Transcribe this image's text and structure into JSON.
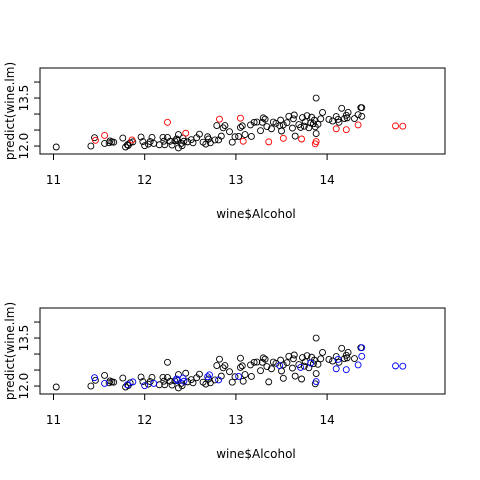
{
  "chart_data": [
    {
      "type": "scatter",
      "xlabel": "wine$Alcohol",
      "ylabel": "predict(wine.lm)",
      "xlim": [
        11,
        14.8
      ],
      "ylim": [
        11.88,
        14.12
      ],
      "x_ticks": [
        "11",
        "12",
        "13",
        "14"
      ],
      "y_ticks": [
        "12.0",
        "12.5",
        "13.0",
        "13.5",
        "14.0"
      ],
      "y_tick_labels_shown": [
        "12.0",
        "13.5"
      ],
      "marker": "open-circle",
      "series": [
        {
          "color": "#000000",
          "points": [
            [
              11.03,
              11.97
            ],
            [
              11.41,
              12.0
            ],
            [
              11.45,
              12.26
            ],
            [
              11.56,
              12.08
            ],
            [
              11.61,
              12.1
            ],
            [
              11.62,
              12.16
            ],
            [
              11.64,
              12.13
            ],
            [
              11.66,
              12.12
            ],
            [
              11.76,
              12.25
            ],
            [
              11.79,
              11.97
            ],
            [
              11.81,
              12.04
            ],
            [
              11.82,
              12.02
            ],
            [
              11.84,
              12.1
            ],
            [
              11.87,
              12.13
            ],
            [
              11.96,
              12.28
            ],
            [
              11.98,
              12.14
            ],
            [
              12.0,
              12.01
            ],
            [
              12.04,
              12.06
            ],
            [
              12.06,
              12.14
            ],
            [
              12.08,
              12.27
            ],
            [
              12.1,
              12.08
            ],
            [
              12.16,
              12.04
            ],
            [
              12.2,
              12.27
            ],
            [
              12.21,
              12.15
            ],
            [
              12.22,
              12.04
            ],
            [
              12.25,
              12.27
            ],
            [
              12.28,
              12.15
            ],
            [
              12.3,
              12.03
            ],
            [
              12.33,
              12.16
            ],
            [
              12.35,
              12.22
            ],
            [
              12.36,
              12.17
            ],
            [
              12.37,
              12.36
            ],
            [
              12.37,
              11.94
            ],
            [
              12.4,
              12.08
            ],
            [
              12.41,
              12.01
            ],
            [
              12.42,
              12.25
            ],
            [
              12.43,
              12.15
            ],
            [
              12.47,
              12.13
            ],
            [
              12.51,
              12.2
            ],
            [
              12.53,
              12.1
            ],
            [
              12.57,
              12.26
            ],
            [
              12.6,
              12.37
            ],
            [
              12.64,
              12.12
            ],
            [
              12.67,
              12.06
            ],
            [
              12.69,
              12.29
            ],
            [
              12.7,
              12.22
            ],
            [
              12.72,
              12.1
            ],
            [
              12.77,
              12.19
            ],
            [
              12.79,
              12.64
            ],
            [
              12.81,
              12.19
            ],
            [
              12.84,
              12.31
            ],
            [
              12.86,
              12.57
            ],
            [
              12.88,
              12.64
            ],
            [
              12.93,
              12.45
            ],
            [
              12.96,
              12.12
            ],
            [
              12.99,
              12.29
            ],
            [
              13.03,
              12.3
            ],
            [
              13.05,
              12.58
            ],
            [
              13.07,
              12.63
            ],
            [
              13.1,
              12.36
            ],
            [
              13.16,
              12.66
            ],
            [
              13.17,
              12.3
            ],
            [
              13.2,
              12.74
            ],
            [
              13.23,
              12.75
            ],
            [
              13.27,
              12.48
            ],
            [
              13.29,
              12.74
            ],
            [
              13.3,
              12.88
            ],
            [
              13.32,
              12.84
            ],
            [
              13.34,
              12.61
            ],
            [
              13.39,
              12.54
            ],
            [
              13.41,
              12.75
            ],
            [
              13.44,
              12.71
            ],
            [
              13.48,
              12.64
            ],
            [
              13.49,
              12.81
            ],
            [
              13.5,
              12.47
            ],
            [
              13.52,
              12.66
            ],
            [
              13.56,
              12.73
            ],
            [
              13.58,
              12.93
            ],
            [
              13.62,
              12.56
            ],
            [
              13.63,
              12.85
            ],
            [
              13.64,
              12.97
            ],
            [
              13.65,
              12.31
            ],
            [
              13.69,
              12.67
            ],
            [
              13.71,
              12.58
            ],
            [
              13.73,
              12.89
            ],
            [
              13.75,
              12.62
            ],
            [
              13.76,
              12.76
            ],
            [
              13.78,
              12.95
            ],
            [
              13.8,
              12.57
            ],
            [
              13.82,
              12.72
            ],
            [
              13.83,
              12.9
            ],
            [
              13.85,
              12.7
            ],
            [
              13.86,
              12.81
            ],
            [
              13.87,
              12.6
            ],
            [
              13.88,
              12.39
            ],
            [
              13.88,
              13.5
            ],
            [
              13.9,
              12.68
            ],
            [
              13.93,
              12.85
            ],
            [
              13.95,
              13.05
            ],
            [
              14.02,
              12.83
            ],
            [
              14.06,
              12.78
            ],
            [
              14.1,
              12.92
            ],
            [
              14.12,
              12.83
            ],
            [
              14.13,
              12.74
            ],
            [
              14.16,
              13.18
            ],
            [
              14.19,
              12.86
            ],
            [
              14.21,
              12.96
            ],
            [
              14.22,
              12.88
            ],
            [
              14.23,
              13.05
            ],
            [
              14.3,
              12.86
            ],
            [
              14.34,
              12.98
            ],
            [
              14.37,
              13.2
            ],
            [
              14.38,
              13.2
            ],
            [
              14.38,
              12.93
            ]
          ]
        },
        {
          "color": "#ff0000",
          "points": [
            [
              11.46,
              12.18
            ],
            [
              11.56,
              12.33
            ],
            [
              11.86,
              12.19
            ],
            [
              12.25,
              12.74
            ],
            [
              12.45,
              12.4
            ],
            [
              12.82,
              12.84
            ],
            [
              13.05,
              12.87
            ],
            [
              13.08,
              12.15
            ],
            [
              13.36,
              12.13
            ],
            [
              13.52,
              12.24
            ],
            [
              13.72,
              12.22
            ],
            [
              13.87,
              12.07
            ],
            [
              13.88,
              12.14
            ],
            [
              14.1,
              12.54
            ],
            [
              14.21,
              12.51
            ],
            [
              14.34,
              12.66
            ],
            [
              14.75,
              12.63
            ],
            [
              14.83,
              12.62
            ]
          ]
        }
      ]
    },
    {
      "type": "scatter",
      "xlabel": "wine$Alcohol",
      "ylabel": "predict(wine.lm)",
      "xlim": [
        11,
        14.8
      ],
      "ylim": [
        11.88,
        14.12
      ],
      "x_ticks": [
        "11",
        "12",
        "13",
        "14"
      ],
      "y_ticks": [
        "12.0",
        "12.5",
        "13.0",
        "13.5",
        "14.0"
      ],
      "y_tick_labels_shown": [
        "12.0",
        "13.5"
      ],
      "marker": "open-circle",
      "series": [
        {
          "color": "#000000",
          "points": [
            [
              11.03,
              11.97
            ],
            [
              11.41,
              12.0
            ],
            [
              11.46,
              12.18
            ],
            [
              11.56,
              12.33
            ],
            [
              11.61,
              12.1
            ],
            [
              11.62,
              12.16
            ],
            [
              11.64,
              12.13
            ],
            [
              11.66,
              12.12
            ],
            [
              11.76,
              12.25
            ],
            [
              11.79,
              11.97
            ],
            [
              11.82,
              12.02
            ],
            [
              11.84,
              12.1
            ],
            [
              11.96,
              12.28
            ],
            [
              11.98,
              12.14
            ],
            [
              12.04,
              12.06
            ],
            [
              12.06,
              12.14
            ],
            [
              12.08,
              12.27
            ],
            [
              12.16,
              12.04
            ],
            [
              12.2,
              12.27
            ],
            [
              12.21,
              12.15
            ],
            [
              12.22,
              12.04
            ],
            [
              12.25,
              12.74
            ],
            [
              12.25,
              12.27
            ],
            [
              12.28,
              12.15
            ],
            [
              12.3,
              12.03
            ],
            [
              12.33,
              12.16
            ],
            [
              12.37,
              12.36
            ],
            [
              12.37,
              11.94
            ],
            [
              12.4,
              12.08
            ],
            [
              12.41,
              12.01
            ],
            [
              12.45,
              12.4
            ],
            [
              12.47,
              12.13
            ],
            [
              12.51,
              12.2
            ],
            [
              12.53,
              12.1
            ],
            [
              12.57,
              12.26
            ],
            [
              12.6,
              12.37
            ],
            [
              12.64,
              12.12
            ],
            [
              12.67,
              12.06
            ],
            [
              12.7,
              12.22
            ],
            [
              12.72,
              12.1
            ],
            [
              12.77,
              12.19
            ],
            [
              12.79,
              12.64
            ],
            [
              12.82,
              12.84
            ],
            [
              12.84,
              12.31
            ],
            [
              12.86,
              12.57
            ],
            [
              12.88,
              12.64
            ],
            [
              12.93,
              12.45
            ],
            [
              12.96,
              12.12
            ],
            [
              12.99,
              12.29
            ],
            [
              13.05,
              12.87
            ],
            [
              13.05,
              12.58
            ],
            [
              13.07,
              12.63
            ],
            [
              13.08,
              12.15
            ],
            [
              13.1,
              12.36
            ],
            [
              13.16,
              12.66
            ],
            [
              13.17,
              12.3
            ],
            [
              13.2,
              12.74
            ],
            [
              13.23,
              12.75
            ],
            [
              13.27,
              12.48
            ],
            [
              13.29,
              12.74
            ],
            [
              13.3,
              12.88
            ],
            [
              13.32,
              12.84
            ],
            [
              13.34,
              12.61
            ],
            [
              13.36,
              12.13
            ],
            [
              13.39,
              12.54
            ],
            [
              13.41,
              12.75
            ],
            [
              13.44,
              12.71
            ],
            [
              13.49,
              12.81
            ],
            [
              13.5,
              12.47
            ],
            [
              13.52,
              12.24
            ],
            [
              13.52,
              12.66
            ],
            [
              13.56,
              12.73
            ],
            [
              13.58,
              12.93
            ],
            [
              13.62,
              12.56
            ],
            [
              13.63,
              12.85
            ],
            [
              13.64,
              12.97
            ],
            [
              13.65,
              12.31
            ],
            [
              13.69,
              12.67
            ],
            [
              13.72,
              12.22
            ],
            [
              13.73,
              12.89
            ],
            [
              13.75,
              12.62
            ],
            [
              13.76,
              12.76
            ],
            [
              13.78,
              12.95
            ],
            [
              13.8,
              12.57
            ],
            [
              13.83,
              12.9
            ],
            [
              13.85,
              12.7
            ],
            [
              13.86,
              12.81
            ],
            [
              13.87,
              12.07
            ],
            [
              13.88,
              12.39
            ],
            [
              13.88,
              13.5
            ],
            [
              13.9,
              12.68
            ],
            [
              13.93,
              12.85
            ],
            [
              13.95,
              13.05
            ],
            [
              14.02,
              12.83
            ],
            [
              14.06,
              12.78
            ],
            [
              14.1,
              12.92
            ],
            [
              14.13,
              12.74
            ],
            [
              14.16,
              13.18
            ],
            [
              14.19,
              12.86
            ],
            [
              14.21,
              12.96
            ],
            [
              14.22,
              12.88
            ],
            [
              14.23,
              13.05
            ],
            [
              14.3,
              12.86
            ],
            [
              14.37,
              13.2
            ]
          ]
        },
        {
          "color": "#0000ff",
          "points": [
            [
              11.45,
              12.26
            ],
            [
              11.56,
              12.08
            ],
            [
              11.81,
              12.04
            ],
            [
              11.87,
              12.13
            ],
            [
              12.0,
              12.01
            ],
            [
              12.1,
              12.08
            ],
            [
              12.35,
              12.22
            ],
            [
              12.36,
              12.17
            ],
            [
              12.42,
              12.25
            ],
            [
              12.43,
              12.15
            ],
            [
              12.69,
              12.29
            ],
            [
              12.71,
              12.35
            ],
            [
              12.81,
              12.19
            ],
            [
              13.03,
              12.3
            ],
            [
              13.48,
              12.64
            ],
            [
              13.71,
              12.58
            ],
            [
              13.82,
              12.72
            ],
            [
              13.88,
              12.14
            ],
            [
              14.1,
              12.54
            ],
            [
              14.12,
              12.83
            ],
            [
              14.21,
              12.51
            ],
            [
              14.34,
              12.66
            ],
            [
              14.38,
              13.2
            ],
            [
              14.38,
              12.93
            ],
            [
              14.75,
              12.63
            ],
            [
              14.83,
              12.62
            ]
          ]
        }
      ]
    }
  ]
}
